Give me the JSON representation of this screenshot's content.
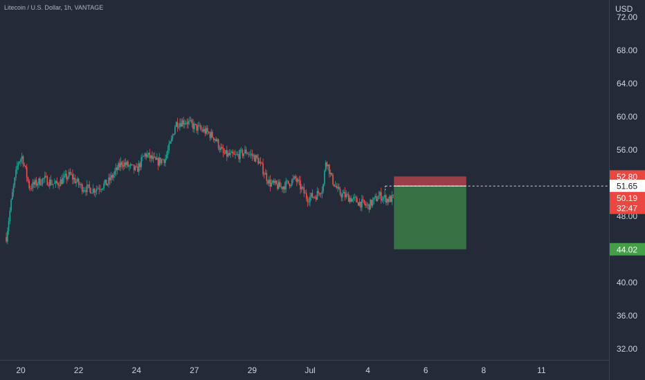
{
  "header": {
    "title": "Litecoin / U.S. Dollar, 1h, VANTAGE",
    "currency": "USD"
  },
  "colors": {
    "background": "#232a38",
    "up": "#26a69a",
    "down": "#ef5350",
    "text": "#b2b5be",
    "grid_text": "#d1d4dc",
    "stop_zone": "#b2424a",
    "target_zone": "#3b7a45",
    "target_label": "#43a047",
    "stop_label": "#e9473f",
    "price_label": "#e9473f"
  },
  "chart_data": {
    "type": "candlestick",
    "title": "Litecoin / U.S. Dollar, 1h, VANTAGE",
    "ylabel": "USD",
    "ylim": [
      30.5,
      73.5
    ],
    "y_ticks": [
      "32.00",
      "36.00",
      "40.00",
      "44.00",
      "48.00",
      "52.00",
      "56.00",
      "60.00",
      "64.00",
      "68.00",
      "72.00"
    ],
    "x_ticks": [
      "20",
      "22",
      "24",
      "27",
      "29",
      "Jul",
      "4",
      "6",
      "8",
      "11"
    ],
    "x_tick_days": [
      0,
      2,
      4,
      6,
      8,
      10,
      12,
      14,
      16,
      18
    ],
    "waypoints": [
      [
        -0.5,
        45.5
      ],
      [
        -0.3,
        50.5
      ],
      [
        -0.1,
        54.5
      ],
      [
        0.05,
        55.2
      ],
      [
        0.3,
        51.5
      ],
      [
        0.8,
        52.5
      ],
      [
        1.2,
        51.8
      ],
      [
        1.7,
        53
      ],
      [
        2.1,
        51.5
      ],
      [
        2.5,
        51.2
      ],
      [
        3.0,
        52.0
      ],
      [
        3.5,
        54.5
      ],
      [
        4.0,
        53.5
      ],
      [
        4.3,
        55.5
      ],
      [
        4.7,
        54.5
      ],
      [
        5.0,
        55.0
      ],
      [
        5.2,
        57.0
      ],
      [
        5.35,
        59.2
      ],
      [
        5.7,
        59.5
      ],
      [
        6.0,
        58.8
      ],
      [
        6.4,
        58.2
      ],
      [
        6.7,
        57.5
      ],
      [
        7.0,
        55.5
      ],
      [
        7.4,
        55.2
      ],
      [
        7.8,
        55.8
      ],
      [
        8.2,
        54.8
      ],
      [
        8.6,
        52.0
      ],
      [
        9.0,
        51.5
      ],
      [
        9.5,
        52.5
      ],
      [
        9.9,
        50.2
      ],
      [
        10.2,
        50.5
      ],
      [
        10.45,
        51.5
      ],
      [
        10.55,
        55.0
      ],
      [
        10.75,
        52.5
      ],
      [
        11.0,
        50.8
      ],
      [
        11.5,
        50.0
      ],
      [
        12.0,
        49.2
      ],
      [
        12.4,
        50.5
      ],
      [
        12.7,
        50.0
      ],
      [
        12.9,
        50.19
      ]
    ],
    "position": {
      "entry": 51.65,
      "stop": 52.8,
      "target": 44.02,
      "start_day": 12.9,
      "end_day": 15.4,
      "marker_day": 12.6
    },
    "last_price": "50.19",
    "countdown": "32:47",
    "entry_label": "51.65",
    "target_label": "44.02",
    "stop_label": "52.80"
  }
}
